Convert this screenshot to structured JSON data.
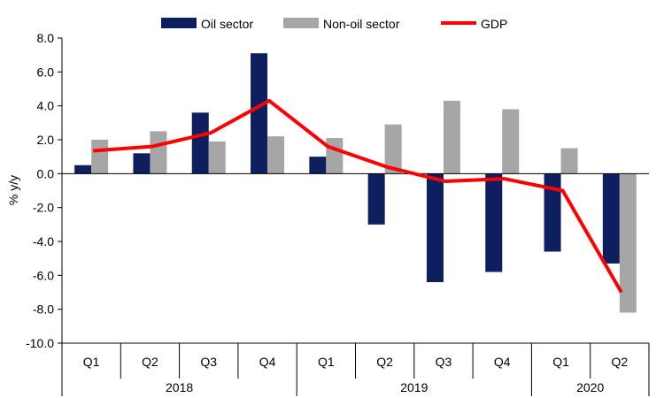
{
  "chart_data": {
    "type": "bar",
    "ylabel": "% y/y",
    "ylim": [
      -10,
      8
    ],
    "yticks": [
      "8.0",
      "6.0",
      "4.0",
      "2.0",
      "0.0",
      "-2.0",
      "-4.0",
      "-6.0",
      "-8.0",
      "-10.0"
    ],
    "ytick_values": [
      8,
      6,
      4,
      2,
      0,
      -2,
      -4,
      -6,
      -8,
      -10
    ],
    "categories": [
      "Q1",
      "Q2",
      "Q3",
      "Q4",
      "Q1",
      "Q2",
      "Q3",
      "Q4",
      "Q1",
      "Q2"
    ],
    "year_groups": [
      {
        "label": "2018",
        "count": 4
      },
      {
        "label": "2019",
        "count": 4
      },
      {
        "label": "2020",
        "count": 2
      }
    ],
    "series": [
      {
        "name": "Oil sector",
        "kind": "bar",
        "color": "#0d1f5e",
        "values": [
          0.5,
          1.2,
          3.6,
          7.1,
          1.0,
          -3.0,
          -6.4,
          -5.8,
          -4.6,
          -5.3
        ]
      },
      {
        "name": "Non-oil sector",
        "kind": "bar",
        "color": "#a6a6a6",
        "values": [
          2.0,
          2.5,
          1.9,
          2.2,
          2.1,
          2.9,
          4.3,
          3.8,
          1.5,
          -8.2
        ]
      },
      {
        "name": "GDP",
        "kind": "line",
        "color": "#ff0000",
        "values": [
          1.35,
          1.6,
          2.4,
          4.3,
          1.6,
          0.4,
          -0.45,
          -0.3,
          -1.0,
          -7.0
        ]
      }
    ],
    "legend_position": "top",
    "grid": false
  }
}
